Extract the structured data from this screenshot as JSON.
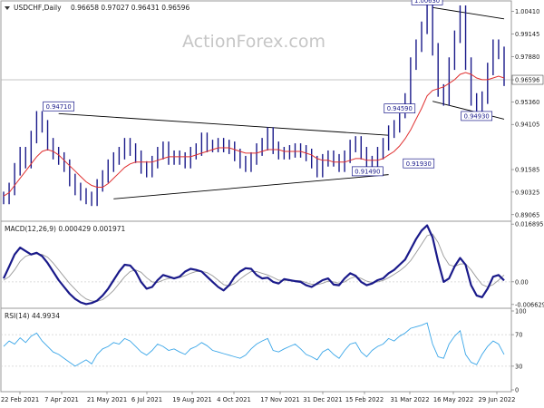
{
  "header": {
    "symbol": "USDCHF,Daily",
    "ohlc": "0.96658 0.97027 0.96431 0.96596",
    "watermark": "ActionForex.com"
  },
  "colors": {
    "candle": "#1a1a8a",
    "ma": "#e03030",
    "macd": "#1a1a8a",
    "signal": "#999999",
    "rsi": "#3aa6e8",
    "trendline": "#000000",
    "grid": "#d0d0d0",
    "label_border": "#1a1a8a"
  },
  "chart_data": [
    {
      "type": "line",
      "panel": "price",
      "ylim": [
        0.8875,
        1.0085
      ],
      "y_ticks": [
        "1.00410",
        "0.99145",
        "0.97880",
        "0.96596",
        "0.95360",
        "0.94105",
        "0.91585",
        "0.90325",
        "0.89065"
      ],
      "current_price": "0.96596",
      "x_ticks": [
        "22 Feb 2021",
        "7 Apr 2021",
        "21 May 2021",
        "6 Jul 2021",
        "19 Aug 2021",
        "4 Oct 2021",
        "17 Nov 2021",
        "31 Dec 2021",
        "15 Feb 2022",
        "31 Mar 2022",
        "16 May 2022",
        "29 Jun 2022"
      ],
      "series": [
        {
          "role": "price",
          "values": [
            0.9,
            0.905,
            0.916,
            0.925,
            0.92,
            0.934,
            0.945,
            0.94,
            0.93,
            0.925,
            0.922,
            0.918,
            0.91,
            0.905,
            0.902,
            0.9,
            0.899,
            0.907,
            0.912,
            0.918,
            0.922,
            0.925,
            0.93,
            0.927,
            0.923,
            0.917,
            0.915,
            0.92,
            0.925,
            0.928,
            0.922,
            0.923,
            0.922,
            0.92,
            0.925,
            0.927,
            0.933,
            0.929,
            0.929,
            0.93,
            0.929,
            0.928,
            0.924,
            0.92,
            0.918,
            0.922,
            0.927,
            0.93,
            0.936,
            0.928,
            0.925,
            0.925,
            0.926,
            0.927,
            0.926,
            0.924,
            0.92,
            0.915,
            0.921,
            0.923,
            0.921,
            0.918,
            0.923,
            0.929,
            0.931,
            0.925,
            0.918,
            0.92,
            0.925,
            0.93,
            0.937,
            0.94,
            0.948,
            0.955,
            0.975,
            0.985,
            0.995,
            1.006,
            0.983,
            0.96,
            0.955,
            0.975,
            0.99,
            1.004,
            0.975,
            0.955,
            0.949,
            0.956,
            0.972,
            0.985,
            0.981,
            0.966
          ]
        },
        {
          "role": "moving_average",
          "values": [
            0.901,
            0.903,
            0.907,
            0.911,
            0.915,
            0.919,
            0.923,
            0.926,
            0.927,
            0.926,
            0.924,
            0.921,
            0.918,
            0.915,
            0.912,
            0.909,
            0.907,
            0.906,
            0.906,
            0.908,
            0.911,
            0.914,
            0.917,
            0.919,
            0.92,
            0.92,
            0.92,
            0.92,
            0.921,
            0.922,
            0.923,
            0.923,
            0.923,
            0.923,
            0.923,
            0.924,
            0.925,
            0.926,
            0.927,
            0.928,
            0.928,
            0.928,
            0.927,
            0.926,
            0.925,
            0.925,
            0.925,
            0.926,
            0.927,
            0.927,
            0.927,
            0.926,
            0.926,
            0.926,
            0.926,
            0.925,
            0.924,
            0.922,
            0.921,
            0.921,
            0.92,
            0.92,
            0.92,
            0.921,
            0.922,
            0.922,
            0.921,
            0.921,
            0.921,
            0.922,
            0.924,
            0.926,
            0.929,
            0.933,
            0.938,
            0.944,
            0.95,
            0.957,
            0.96,
            0.961,
            0.962,
            0.964,
            0.966,
            0.969,
            0.97,
            0.969,
            0.967,
            0.966,
            0.966,
            0.967,
            0.968,
            0.967
          ]
        }
      ],
      "annotations": [
        {
          "label": "0.94710",
          "x_index": 10,
          "y": 0.9471
        },
        {
          "label": "0.91490",
          "x_index": 66,
          "y": 0.9149
        },
        {
          "label": "0.91930",
          "x_index": 72,
          "y": 0.9193
        },
        {
          "label": "0.94590",
          "x_index": 72,
          "y": 0.9459
        },
        {
          "label": "1.00630",
          "x_index": 77,
          "y": 1.0063
        },
        {
          "label": "0.94930",
          "x_index": 86,
          "y": 0.9493
        }
      ],
      "trendlines": [
        {
          "from": [
            10,
            0.9471
          ],
          "to": [
            70,
            0.935
          ]
        },
        {
          "from": [
            20,
            0.8995
          ],
          "to": [
            70,
            0.913
          ]
        },
        {
          "from": [
            78,
            1.0063
          ],
          "to": [
            91,
            1.0
          ]
        },
        {
          "from": [
            78,
            0.954
          ],
          "to": [
            91,
            0.944
          ]
        }
      ]
    },
    {
      "type": "line",
      "panel": "macd",
      "title": "MACD(12,26,9) 0.000429 0.001971",
      "ylim": [
        -0.0072,
        0.0172
      ],
      "y_ticks": [
        "0.016895",
        "0.00",
        "-0.006629"
      ],
      "series": [
        {
          "role": "macd",
          "values": [
            0.001,
            0.0045,
            0.008,
            0.01,
            0.009,
            0.008,
            0.0085,
            0.0075,
            0.0055,
            0.003,
            0.0005,
            -0.0015,
            -0.0035,
            -0.005,
            -0.006,
            -0.0065,
            -0.0062,
            -0.0055,
            -0.004,
            -0.002,
            0.0005,
            0.003,
            0.005,
            0.0048,
            0.003,
            0.0,
            -0.002,
            -0.0015,
            0.0005,
            0.002,
            0.0015,
            0.001,
            0.0015,
            0.003,
            0.0038,
            0.0035,
            0.003,
            0.0015,
            0.0,
            -0.0015,
            -0.0025,
            -0.001,
            0.0015,
            0.003,
            0.004,
            0.0038,
            0.002,
            0.001,
            0.0012,
            0.0,
            -0.0005,
            0.0008,
            0.0005,
            0.0002,
            0.0,
            -0.001,
            -0.0015,
            -0.0005,
            0.0005,
            0.001,
            -0.0008,
            -0.001,
            0.001,
            0.0025,
            0.0018,
            0.0,
            -0.001,
            -0.0005,
            0.0005,
            0.001,
            0.0025,
            0.0035,
            0.005,
            0.0065,
            0.0095,
            0.0125,
            0.015,
            0.0165,
            0.013,
            0.006,
            0.0,
            0.001,
            0.0045,
            0.007,
            0.005,
            -0.001,
            -0.004,
            -0.0045,
            -0.002,
            0.0015,
            0.002,
            0.0004
          ]
        },
        {
          "role": "signal",
          "values": [
            0.0005,
            0.0015,
            0.0035,
            0.006,
            0.0075,
            0.008,
            0.0082,
            0.008,
            0.0072,
            0.0055,
            0.0035,
            0.0015,
            -0.0005,
            -0.0022,
            -0.0038,
            -0.005,
            -0.0056,
            -0.0057,
            -0.0052,
            -0.004,
            -0.0025,
            -0.0005,
            0.0015,
            0.003,
            0.0035,
            0.0028,
            0.0012,
            0.0,
            -0.0002,
            0.0005,
            0.001,
            0.0012,
            0.0013,
            0.0018,
            0.0025,
            0.003,
            0.0031,
            0.0027,
            0.0018,
            0.0005,
            -0.0008,
            -0.0012,
            -0.0005,
            0.0008,
            0.002,
            0.003,
            0.003,
            0.0025,
            0.002,
            0.0013,
            0.0005,
            0.0004,
            0.0004,
            0.0004,
            0.0003,
            -0.0002,
            -0.0007,
            -0.0008,
            -0.0004,
            0.0002,
            0.0,
            -0.0004,
            0.0,
            0.001,
            0.0015,
            0.001,
            0.0002,
            -0.0002,
            0.0,
            0.0004,
            0.0012,
            0.0022,
            0.0032,
            0.0045,
            0.0062,
            0.0085,
            0.011,
            0.0135,
            0.014,
            0.0115,
            0.0075,
            0.005,
            0.0045,
            0.0052,
            0.0053,
            0.0035,
            0.0012,
            -0.0008,
            -0.0015,
            -0.0008,
            0.0005,
            0.002
          ]
        }
      ]
    },
    {
      "type": "line",
      "panel": "rsi",
      "title": "RSI(14) 44.9934",
      "ylim": [
        0,
        100
      ],
      "y_ticks": [
        "100",
        "70",
        "30",
        "0"
      ],
      "series": [
        {
          "role": "rsi",
          "values": [
            55,
            62,
            58,
            66,
            60,
            68,
            72,
            62,
            55,
            48,
            45,
            40,
            35,
            30,
            34,
            38,
            33,
            45,
            52,
            55,
            60,
            58,
            65,
            62,
            55,
            48,
            44,
            50,
            58,
            55,
            50,
            52,
            48,
            45,
            52,
            55,
            60,
            56,
            50,
            48,
            46,
            44,
            42,
            40,
            44,
            52,
            58,
            62,
            65,
            50,
            48,
            52,
            55,
            58,
            52,
            45,
            42,
            38,
            48,
            52,
            45,
            40,
            50,
            58,
            60,
            48,
            42,
            50,
            55,
            58,
            65,
            62,
            68,
            72,
            78,
            80,
            82,
            85,
            58,
            42,
            40,
            58,
            68,
            75,
            45,
            35,
            32,
            45,
            55,
            62,
            58,
            45
          ]
        }
      ]
    }
  ]
}
